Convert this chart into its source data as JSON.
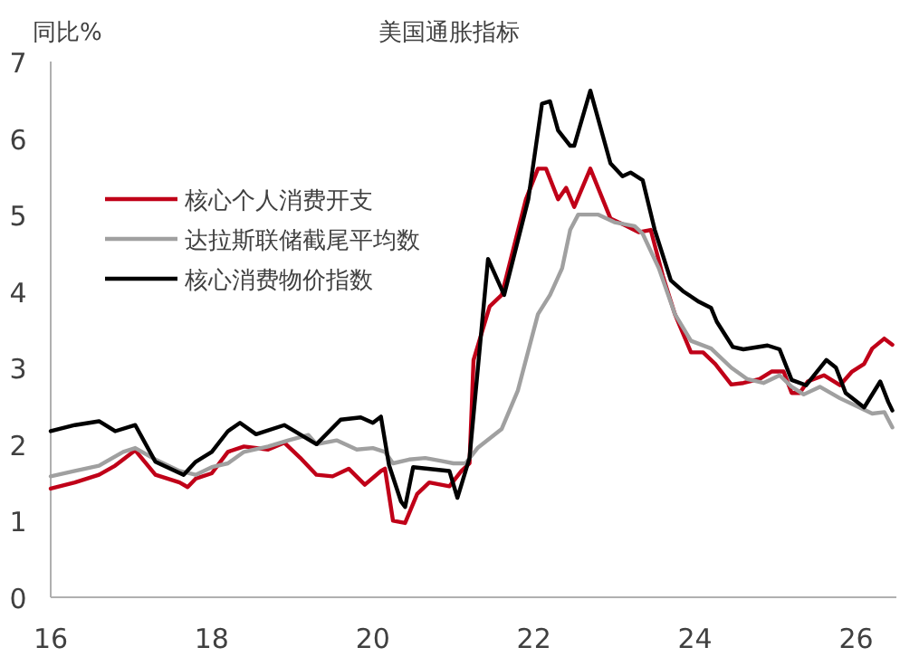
{
  "chart_data": {
    "type": "line",
    "title": "美国通胀指标",
    "ylabel": "同比%",
    "xlim": [
      16,
      26.5
    ],
    "xticks": [
      16,
      18,
      20,
      22,
      24,
      26
    ],
    "ylim": [
      0,
      7
    ],
    "yticks": [
      0,
      1,
      2,
      3,
      4,
      5,
      6,
      7
    ],
    "grid": false,
    "legend": "top left",
    "line_style": "solid",
    "marker": "none",
    "series": [
      {
        "name": "核心个人消费开支",
        "color": "#c00018",
        "x": [
          16.0,
          16.3,
          16.6,
          16.8,
          17.05,
          17.3,
          17.6,
          17.7,
          17.8,
          18.0,
          18.2,
          18.4,
          18.7,
          18.9,
          19.1,
          19.3,
          19.5,
          19.7,
          19.9,
          20.1,
          20.15,
          20.25,
          20.4,
          20.55,
          20.7,
          20.95,
          21.1,
          21.2,
          21.25,
          21.45,
          21.6,
          21.9,
          22.05,
          22.15,
          22.3,
          22.4,
          22.5,
          22.7,
          22.95,
          23.15,
          23.3,
          23.45,
          23.6,
          23.75,
          23.95,
          24.1,
          24.25,
          24.45,
          24.6,
          24.8,
          24.95,
          25.1,
          25.2,
          25.3,
          25.4,
          25.6,
          25.8,
          25.95,
          26.1,
          26.2,
          26.35,
          26.45
        ],
        "values": [
          1.42,
          1.5,
          1.6,
          1.72,
          1.92,
          1.6,
          1.5,
          1.44,
          1.55,
          1.62,
          1.9,
          1.97,
          1.93,
          2.02,
          1.82,
          1.6,
          1.58,
          1.68,
          1.47,
          1.65,
          1.68,
          1.0,
          0.97,
          1.35,
          1.5,
          1.45,
          1.65,
          1.75,
          3.1,
          3.8,
          3.95,
          5.2,
          5.6,
          5.6,
          5.2,
          5.35,
          5.1,
          5.6,
          4.95,
          4.85,
          4.77,
          4.8,
          4.2,
          3.7,
          3.2,
          3.2,
          3.05,
          2.78,
          2.8,
          2.85,
          2.95,
          2.95,
          2.67,
          2.67,
          2.82,
          2.9,
          2.77,
          2.95,
          3.05,
          3.25,
          3.38,
          3.3
        ]
      },
      {
        "name": "达拉斯联储截尾平均数",
        "color": "#a0a0a0",
        "x": [
          16.0,
          16.3,
          16.6,
          16.9,
          17.05,
          17.3,
          17.6,
          17.8,
          18.0,
          18.2,
          18.4,
          18.7,
          18.95,
          19.2,
          19.3,
          19.55,
          19.8,
          20.0,
          20.15,
          20.25,
          20.45,
          20.65,
          20.85,
          21.0,
          21.15,
          21.3,
          21.6,
          21.8,
          21.95,
          22.05,
          22.2,
          22.35,
          22.45,
          22.55,
          22.8,
          23.0,
          23.25,
          23.35,
          23.55,
          23.75,
          23.95,
          24.2,
          24.45,
          24.65,
          24.85,
          25.05,
          25.2,
          25.35,
          25.55,
          25.8,
          26.0,
          26.2,
          26.35,
          26.45
        ],
        "values": [
          1.58,
          1.65,
          1.72,
          1.9,
          1.95,
          1.8,
          1.65,
          1.6,
          1.7,
          1.75,
          1.9,
          1.97,
          2.05,
          2.12,
          2.0,
          2.05,
          1.93,
          1.95,
          1.9,
          1.75,
          1.8,
          1.82,
          1.78,
          1.75,
          1.75,
          1.95,
          2.2,
          2.7,
          3.3,
          3.7,
          3.95,
          4.3,
          4.8,
          5.0,
          5.0,
          4.9,
          4.85,
          4.75,
          4.3,
          3.7,
          3.35,
          3.25,
          3.0,
          2.85,
          2.8,
          2.9,
          2.75,
          2.65,
          2.75,
          2.6,
          2.5,
          2.4,
          2.42,
          2.22
        ]
      },
      {
        "name": "核心消费物价指数",
        "color": "#000000",
        "x": [
          16.0,
          16.3,
          16.6,
          16.8,
          17.05,
          17.3,
          17.65,
          17.8,
          18.0,
          18.2,
          18.35,
          18.55,
          18.9,
          19.3,
          19.6,
          19.85,
          20.0,
          20.1,
          20.2,
          20.35,
          20.4,
          20.5,
          20.95,
          21.05,
          21.2,
          21.43,
          21.63,
          21.93,
          22.1,
          22.2,
          22.3,
          22.45,
          22.5,
          22.7,
          22.95,
          23.1,
          23.2,
          23.35,
          23.5,
          23.7,
          23.85,
          24.05,
          24.2,
          24.27,
          24.47,
          24.6,
          24.9,
          25.05,
          25.2,
          25.38,
          25.63,
          25.75,
          25.87,
          26.1,
          26.3,
          26.4,
          26.45
        ],
        "values": [
          2.17,
          2.25,
          2.3,
          2.17,
          2.25,
          1.77,
          1.6,
          1.77,
          1.9,
          2.17,
          2.28,
          2.13,
          2.25,
          2.0,
          2.32,
          2.35,
          2.28,
          2.36,
          1.73,
          1.25,
          1.18,
          1.7,
          1.65,
          1.3,
          1.82,
          4.42,
          3.95,
          5.2,
          6.45,
          6.48,
          6.1,
          5.9,
          5.9,
          6.62,
          5.67,
          5.5,
          5.55,
          5.45,
          4.8,
          4.14,
          4.0,
          3.86,
          3.78,
          3.6,
          3.27,
          3.24,
          3.29,
          3.24,
          2.84,
          2.77,
          3.1,
          3.0,
          2.67,
          2.48,
          2.82,
          2.55,
          2.44
        ]
      }
    ]
  }
}
